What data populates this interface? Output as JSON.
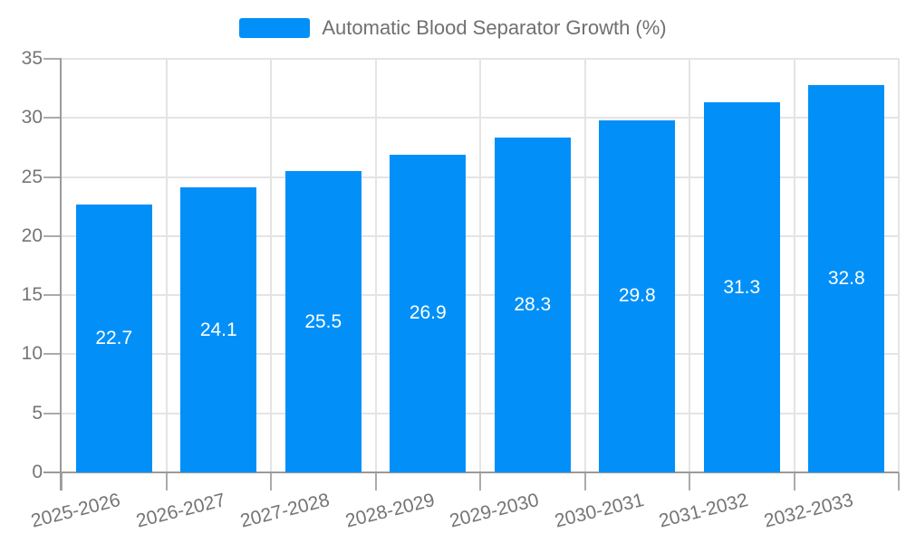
{
  "legend": {
    "label": "Automatic Blood Separator Growth (%)"
  },
  "chart_data": {
    "type": "bar",
    "title": "Automatic Blood Separator Growth (%)",
    "categories": [
      "2025-2026",
      "2026-2027",
      "2027-2028",
      "2028-2029",
      "2029-2030",
      "2030-2031",
      "2031-2032",
      "2032-2033"
    ],
    "values": [
      22.7,
      24.1,
      25.5,
      26.9,
      28.3,
      29.8,
      31.3,
      32.8
    ],
    "value_labels": [
      "22.7",
      "24.1",
      "25.5",
      "26.9",
      "28.3",
      "29.8",
      "31.3",
      "32.8"
    ],
    "xlabel": "",
    "ylabel": "",
    "ylim": [
      0,
      35
    ],
    "yticks": [
      0,
      5,
      10,
      15,
      20,
      25,
      30,
      35
    ],
    "grid": true,
    "legend_position": "top-center",
    "value_labels_inside_bars": true
  },
  "colors": {
    "bar": "#0290f8",
    "grid": "#e4e4e4",
    "axis": "#9a9a9a",
    "tick": "#ababab",
    "tick_label": "#757575",
    "legend_text": "#707070",
    "value_label": "#ffffff",
    "background": "#ffffff"
  }
}
